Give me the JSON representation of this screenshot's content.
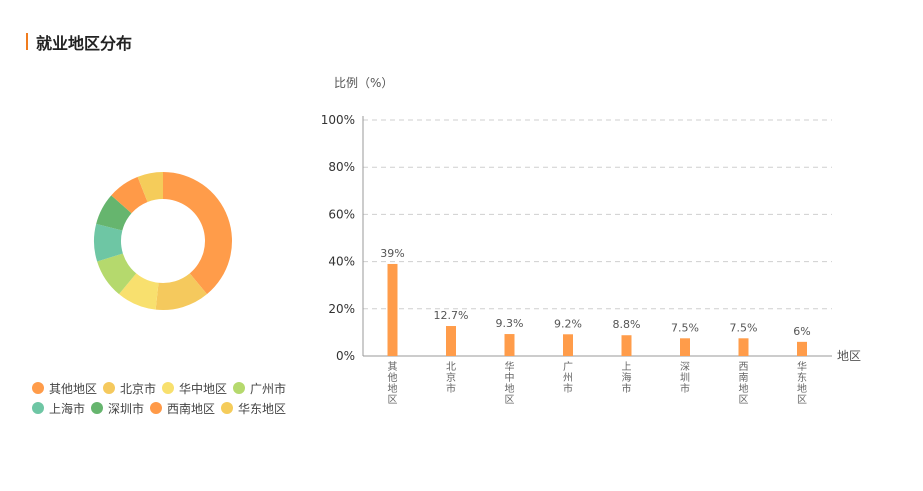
{
  "header": {
    "title": "就业地区分布"
  },
  "chart_data": [
    {
      "type": "pie",
      "style": "donut",
      "categories": [
        "其他地区",
        "北京市",
        "华中地区",
        "广州市",
        "上海市",
        "深圳市",
        "西南地区",
        "华东地区"
      ],
      "values": [
        39,
        12.7,
        9.3,
        9.2,
        8.8,
        7.5,
        7.5,
        6
      ],
      "colors": [
        "#ff9c4a",
        "#f5c95d",
        "#f8e06e",
        "#b5d96d",
        "#6ec6a4",
        "#66b56e",
        "#ff9a48",
        "#f5cc5a"
      ],
      "legend": "bottom-left"
    },
    {
      "type": "bar",
      "categories": [
        "其他地区",
        "北京市",
        "华中地区",
        "广州市",
        "上海市",
        "深圳市",
        "西南地区",
        "华东地区"
      ],
      "values": [
        39,
        12.7,
        9.3,
        9.2,
        8.8,
        7.5,
        7.5,
        6
      ],
      "data_labels": [
        "39%",
        "12.7%",
        "9.3%",
        "9.2%",
        "8.8%",
        "7.5%",
        "7.5%",
        "6%"
      ],
      "ylabel": "比例（%）",
      "xlabel": "地区",
      "ylim": [
        0,
        100
      ],
      "yticks": [
        0,
        20,
        40,
        60,
        80,
        100
      ],
      "ytick_labels": [
        "0%",
        "20%",
        "40%",
        "60%",
        "80%",
        "100%"
      ],
      "grid": true,
      "bar_color": "#ff9c4a"
    }
  ]
}
